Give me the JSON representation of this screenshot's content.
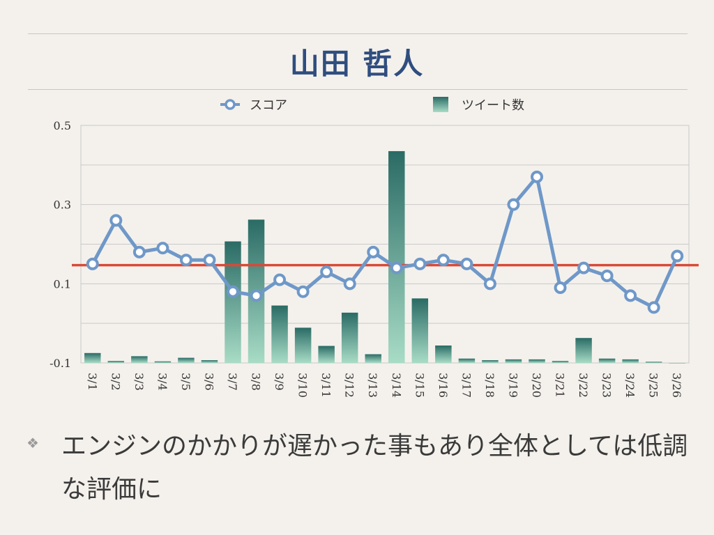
{
  "slide": {
    "title": "山田 哲人",
    "bullet_icon": "diamond-cluster-icon",
    "bullet_text": "エンジンのかかりが遅かった事もあり全体としては低調な評価に"
  },
  "colors": {
    "score_line": "#6f98c8",
    "reference_line": "#d84a38",
    "bar_top": "#2a6b65",
    "bar_bottom": "#a8dcc6",
    "grid": "#c9c9c9",
    "title": "#2f4d7f"
  },
  "chart_data": {
    "type": "bar+line",
    "title": "",
    "xlabel": "",
    "ylabel": "",
    "ylim": [
      -0.1,
      0.5
    ],
    "yticks": [
      -0.1,
      0.1,
      0.3,
      0.5
    ],
    "ytick_labels": [
      "-0.1",
      "0.1",
      "0.3",
      "0.5"
    ],
    "grid": true,
    "legend_position": "top",
    "categories": [
      "3/1",
      "3/2",
      "3/3",
      "3/4",
      "3/5",
      "3/6",
      "3/7",
      "3/8",
      "3/9",
      "3/10",
      "3/11",
      "3/12",
      "3/13",
      "3/14",
      "3/15",
      "3/16",
      "3/17",
      "3/18",
      "3/19",
      "3/20",
      "3/21",
      "3/22",
      "3/23",
      "3/24",
      "3/25",
      "3/26"
    ],
    "series": [
      {
        "name": "スコア",
        "type": "line",
        "values": [
          0.15,
          0.26,
          0.18,
          0.19,
          0.16,
          0.16,
          0.08,
          0.07,
          0.11,
          0.08,
          0.13,
          0.1,
          0.18,
          0.14,
          0.15,
          0.16,
          0.15,
          0.1,
          0.3,
          0.37,
          0.09,
          0.14,
          0.12,
          0.07,
          0.04,
          0.17
        ]
      },
      {
        "name": "ツイート数",
        "type": "bar",
        "values": [
          -0.075,
          -0.095,
          -0.083,
          -0.096,
          -0.087,
          -0.093,
          0.207,
          0.262,
          0.045,
          -0.011,
          -0.057,
          0.027,
          -0.078,
          0.435,
          0.063,
          -0.056,
          -0.089,
          -0.093,
          -0.091,
          -0.091,
          -0.095,
          -0.037,
          -0.089,
          -0.091,
          -0.097,
          -0.1
        ]
      }
    ],
    "reference_line": 0.147
  }
}
